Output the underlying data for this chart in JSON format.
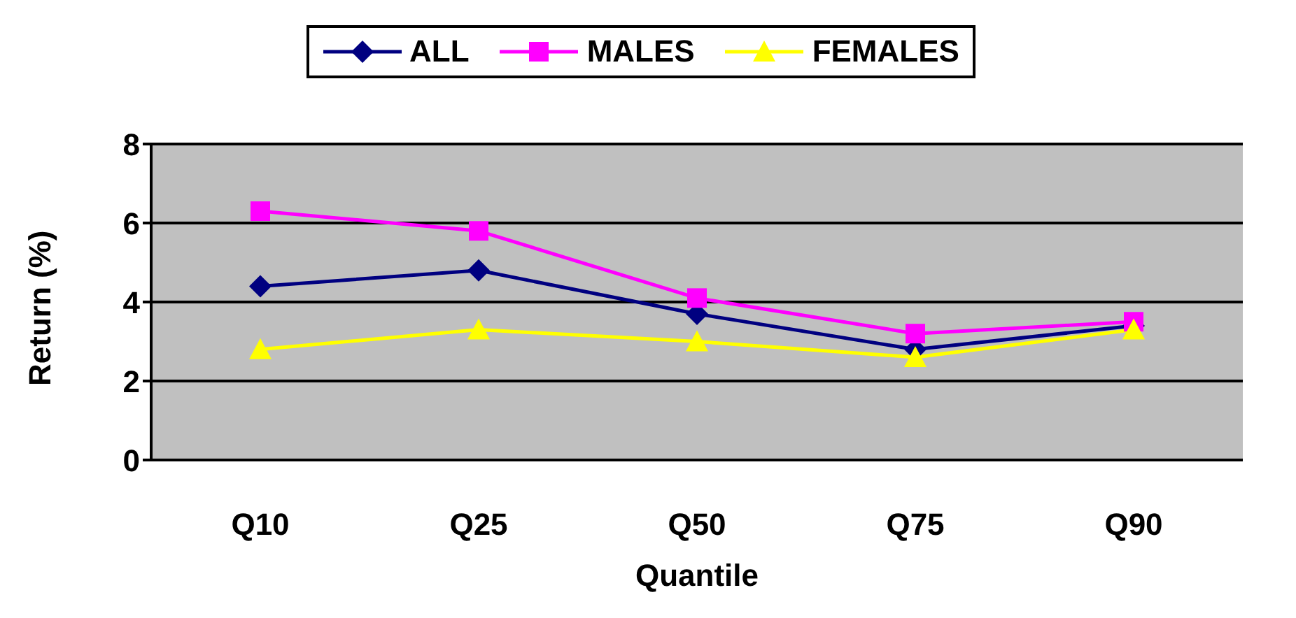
{
  "chart_data": {
    "type": "line",
    "xlabel": "Quantile",
    "ylabel": "Return (%)",
    "categories": [
      "Q10",
      "Q25",
      "Q50",
      "Q75",
      "Q90"
    ],
    "series": [
      {
        "name": "ALL",
        "color": "#000080",
        "marker": "diamond",
        "values": [
          4.4,
          4.8,
          3.7,
          2.8,
          3.4
        ]
      },
      {
        "name": "MALES",
        "color": "#ff00ff",
        "marker": "square",
        "values": [
          6.3,
          5.8,
          4.1,
          3.2,
          3.5
        ]
      },
      {
        "name": "FEMALES",
        "color": "#ffff00",
        "marker": "triangle",
        "values": [
          2.8,
          3.3,
          3.0,
          2.6,
          3.3
        ]
      }
    ],
    "ylim": [
      0,
      8
    ],
    "yticks": [
      0,
      2,
      4,
      6,
      8
    ],
    "grid": "y",
    "legend": "top"
  }
}
